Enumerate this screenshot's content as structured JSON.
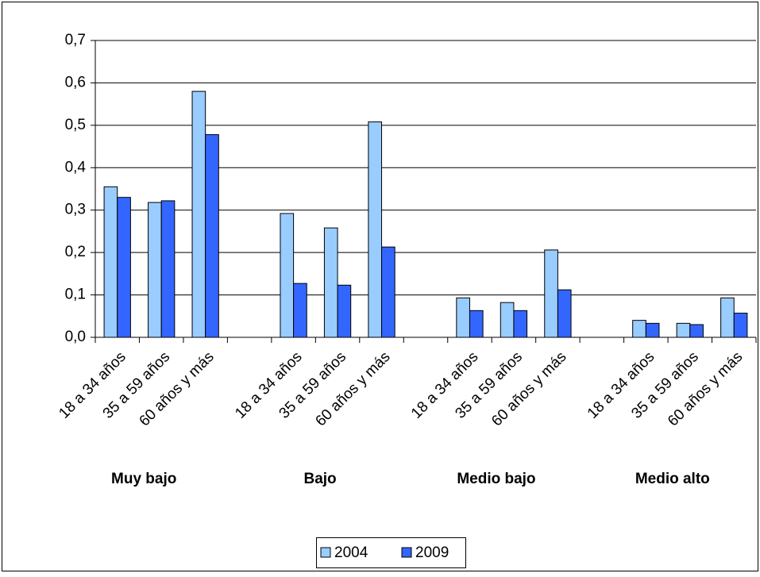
{
  "chart_data": {
    "type": "bar",
    "categories": [
      "18 a 34 años",
      "35 a 59 años",
      "60 años y más",
      null,
      "18 a 34 años",
      "35 a 59 años",
      "60 años y más",
      null,
      "18 a 34 años",
      "35 a 59 años",
      "60 años y más",
      null,
      "18 a 34 años",
      "35 a 59 años",
      "60 años y más"
    ],
    "group_labels": [
      "Muy bajo",
      "Bajo",
      "Medio bajo",
      "Medio alto"
    ],
    "series": [
      {
        "name": "2004",
        "color": "#99ccff",
        "values": [
          0.355,
          0.318,
          0.58,
          null,
          0.292,
          0.258,
          0.508,
          null,
          0.093,
          0.082,
          0.206,
          null,
          0.04,
          0.033,
          0.093
        ]
      },
      {
        "name": "2009",
        "color": "#3366ff",
        "values": [
          0.33,
          0.322,
          0.478,
          null,
          0.127,
          0.123,
          0.213,
          null,
          0.063,
          0.063,
          0.112,
          null,
          0.033,
          0.03,
          0.057
        ]
      }
    ],
    "ylim": [
      0,
      0.7
    ],
    "yticks": [
      {
        "value": 0,
        "label": "0,0"
      },
      {
        "value": 0.1,
        "label": "0,1"
      },
      {
        "value": 0.2,
        "label": "0,2"
      },
      {
        "value": 0.3,
        "label": "0,3"
      },
      {
        "value": 0.4,
        "label": "0,4"
      },
      {
        "value": 0.5,
        "label": "0,5"
      },
      {
        "value": 0.6,
        "label": "0,6"
      },
      {
        "value": 0.7,
        "label": "0,7"
      }
    ],
    "grid": true,
    "legend": "bottom"
  }
}
